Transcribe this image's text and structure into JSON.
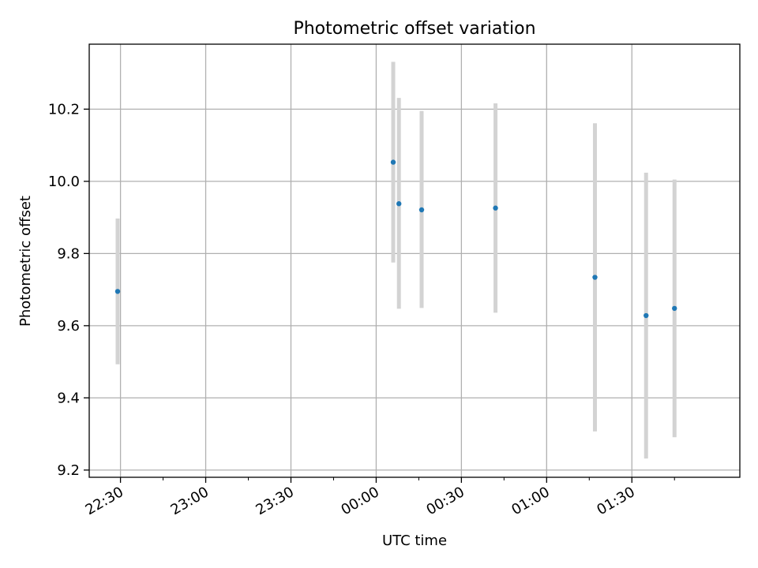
{
  "chart_data": {
    "type": "scatter",
    "title": "Photometric offset variation",
    "xlabel": "UTC time",
    "ylabel": "Photometric offset",
    "x_axis_kind": "time",
    "xlim": [
      "22:19",
      "02:08"
    ],
    "ylim": [
      9.18,
      10.38
    ],
    "x_ticks": [
      "22:30",
      "23:00",
      "23:30",
      "00:00",
      "00:30",
      "01:00",
      "01:30"
    ],
    "y_ticks": [
      9.2,
      9.4,
      9.6,
      9.8,
      10.0,
      10.2
    ],
    "grid": true,
    "series": [
      {
        "marker_color": "#1f77b4",
        "errorbar_color": "#d3d3d3",
        "points": [
          {
            "x": "22:29",
            "y": 9.695,
            "ylow": 9.493,
            "yhigh": 9.897
          },
          {
            "x": "00:06",
            "y": 10.053,
            "ylow": 9.775,
            "yhigh": 10.331
          },
          {
            "x": "00:08",
            "y": 9.938,
            "ylow": 9.647,
            "yhigh": 10.231
          },
          {
            "x": "00:16",
            "y": 9.921,
            "ylow": 9.649,
            "yhigh": 10.195
          },
          {
            "x": "00:42",
            "y": 9.926,
            "ylow": 9.636,
            "yhigh": 10.216
          },
          {
            "x": "01:17",
            "y": 9.734,
            "ylow": 9.307,
            "yhigh": 10.161
          },
          {
            "x": "01:35",
            "y": 9.628,
            "ylow": 9.232,
            "yhigh": 10.024
          },
          {
            "x": "01:45",
            "y": 9.648,
            "ylow": 9.291,
            "yhigh": 10.005
          }
        ]
      }
    ]
  }
}
